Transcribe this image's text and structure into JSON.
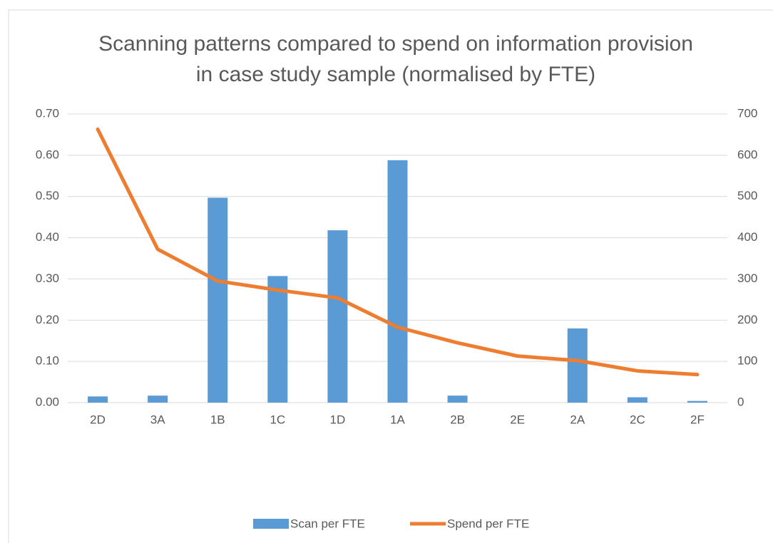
{
  "chart_data": {
    "type": "bar_line",
    "title": "Scanning patterns compared to spend on information provision in case study sample (normalised by FTE)",
    "categories": [
      "2D",
      "3A",
      "1B",
      "1C",
      "1D",
      "1A",
      "2B",
      "2E",
      "2A",
      "2C",
      "2F"
    ],
    "series": [
      {
        "name": "Scan per FTE",
        "type": "bar",
        "color": "#5b9bd5",
        "axis": "y",
        "values": [
          0.015,
          0.017,
          0.497,
          0.307,
          0.418,
          0.588,
          0.017,
          0,
          0.18,
          0.013,
          0.004
        ]
      },
      {
        "name": "Spend per FTE",
        "type": "line",
        "color": "#ed7d31",
        "axis": "y2",
        "values": [
          663,
          372,
          295,
          273,
          254,
          183,
          145,
          113,
          102,
          77,
          68
        ]
      }
    ],
    "ylim": [
      0,
      0.7
    ],
    "yticks": [
      {
        "value": 0,
        "label": "0.00"
      },
      {
        "value": 0.1,
        "label": "0.10"
      },
      {
        "value": 0.2,
        "label": "0.20"
      },
      {
        "value": 0.3,
        "label": "0.30"
      },
      {
        "value": 0.4,
        "label": "0.40"
      },
      {
        "value": 0.5,
        "label": "0.50"
      },
      {
        "value": 0.6,
        "label": "0.60"
      },
      {
        "value": 0.7,
        "label": "0.70"
      }
    ],
    "y2lim": [
      0,
      700
    ],
    "y2ticks": [
      0,
      100,
      200,
      300,
      400,
      500,
      600,
      700
    ],
    "grid": true,
    "legend": "bottom"
  }
}
